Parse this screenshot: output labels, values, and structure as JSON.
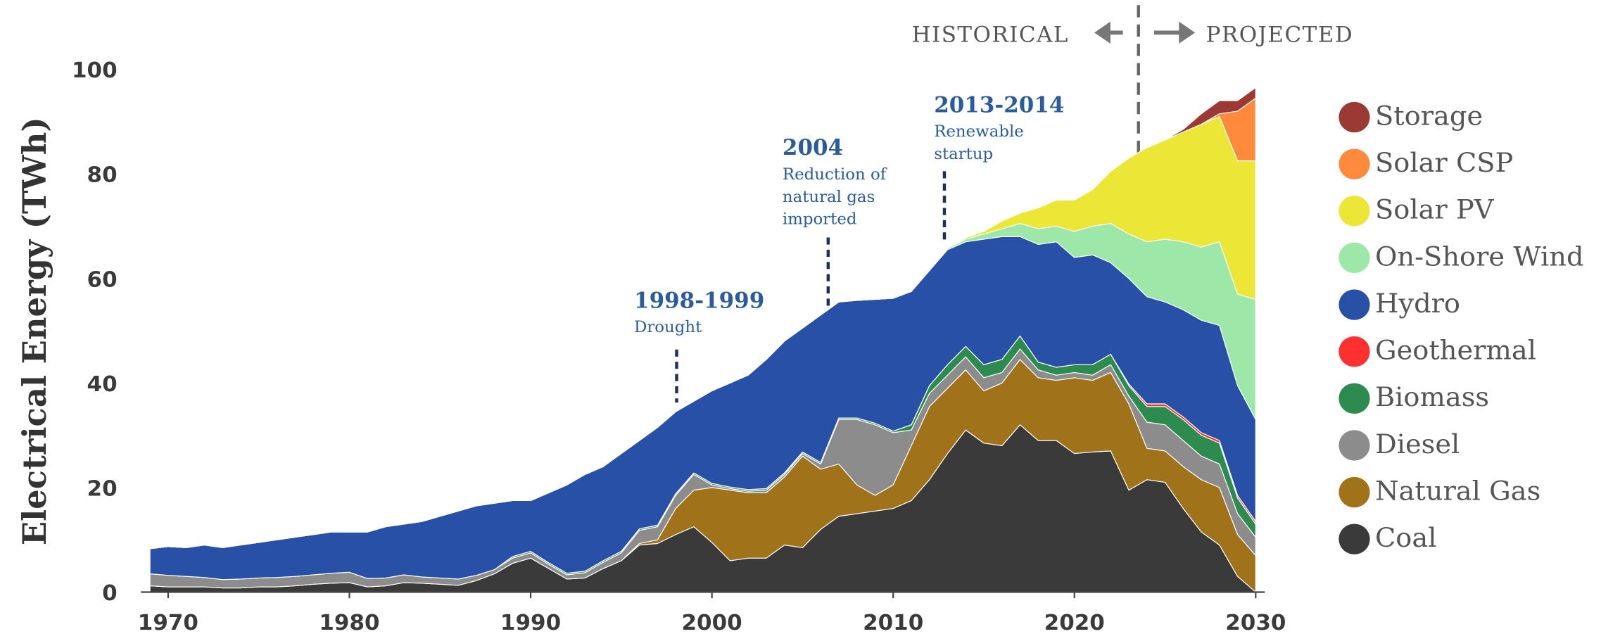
{
  "chart_data": {
    "type": "stacked_area",
    "ylabel": "Electrical Energy (TWh)",
    "divider": {
      "left": "HISTORICAL",
      "right": "PROJECTED"
    },
    "annotations": [
      {
        "title": "1998-1999",
        "lines": [
          "Drought"
        ]
      },
      {
        "title": "2004",
        "lines": [
          "Reduction of",
          "natural gas",
          "imported"
        ]
      },
      {
        "title": "2013-2014",
        "lines": [
          "Renewable",
          "startup"
        ]
      }
    ],
    "xlim": [
      1968.5,
      2030.5
    ],
    "xticks": [
      1970,
      1980,
      1990,
      2000,
      2010,
      2020,
      2030
    ],
    "ylim": [
      0,
      100
    ],
    "yticks": [
      0,
      20,
      40,
      60,
      80,
      100
    ],
    "x": [
      1969,
      1970,
      1971,
      1972,
      1973,
      1974,
      1975,
      1976,
      1977,
      1978,
      1979,
      1980,
      1981,
      1982,
      1983,
      1984,
      1985,
      1986,
      1987,
      1988,
      1989,
      1990,
      1991,
      1992,
      1993,
      1994,
      1995,
      1996,
      1997,
      1998,
      1999,
      2000,
      2001,
      2002,
      2003,
      2004,
      2005,
      2006,
      2007,
      2008,
      2009,
      2010,
      2011,
      2012,
      2013,
      2014,
      2015,
      2016,
      2017,
      2018,
      2019,
      2020,
      2021,
      2022,
      2023,
      2024,
      2025,
      2026,
      2027,
      2028,
      2029,
      2030
    ],
    "series": [
      {
        "name": "Coal",
        "color": "#3a3a3a",
        "values": [
          1.2,
          1,
          1,
          1,
          0.8,
          0.8,
          1,
          1,
          1.2,
          1.5,
          1.7,
          1.8,
          1,
          1.2,
          1.8,
          1.7,
          1.5,
          1.3,
          2.2,
          3.5,
          5.5,
          6.5,
          4.5,
          2.5,
          2.7,
          4.5,
          6,
          9,
          9.3,
          11,
          12.5,
          9.5,
          6,
          6.5,
          6.5,
          9,
          8.5,
          12,
          14.5,
          15,
          15.5,
          16,
          17.5,
          21.5,
          26.5,
          31,
          28.5,
          28,
          32,
          29,
          29,
          26.5,
          26.8,
          27,
          19.5,
          21.5,
          21,
          16,
          11.5,
          9,
          3,
          0
        ]
      },
      {
        "name": "Natural Gas",
        "color": "#a0721a",
        "values": [
          0,
          0,
          0,
          0,
          0,
          0,
          0,
          0,
          0,
          0,
          0,
          0,
          0,
          0,
          0,
          0,
          0,
          0,
          0,
          0,
          0,
          0,
          0,
          0,
          0,
          0,
          0,
          0.3,
          0.7,
          5,
          7,
          10.5,
          13.5,
          12.5,
          12.5,
          13,
          17.5,
          11.5,
          10,
          5.5,
          3,
          4.5,
          10.5,
          14,
          12.5,
          11.5,
          10,
          12,
          12.5,
          12,
          11.5,
          14.5,
          13.7,
          15,
          16.5,
          6,
          6,
          8,
          10,
          11,
          8,
          7
        ]
      },
      {
        "name": "Diesel",
        "color": "#8c8c8c",
        "values": [
          2.3,
          2.2,
          2,
          1.8,
          1.6,
          1.7,
          1.7,
          1.8,
          1.8,
          1.8,
          1.9,
          2,
          1.6,
          1.5,
          1.5,
          1.2,
          1.2,
          1.2,
          1,
          0.8,
          1,
          1,
          0.8,
          0.8,
          1,
          1.2,
          1.5,
          2.5,
          2.5,
          2.5,
          3,
          0.5,
          0.3,
          0.3,
          0.5,
          0.5,
          0.5,
          1,
          8.5,
          12.5,
          13.5,
          10,
          3,
          2.5,
          2.5,
          2.5,
          2.5,
          2,
          2,
          1.5,
          1,
          1,
          1,
          1.5,
          1.5,
          5,
          5,
          5,
          4.5,
          4.5,
          4,
          3.5
        ]
      },
      {
        "name": "Biomass",
        "color": "#2e8b4f",
        "values": [
          0,
          0,
          0,
          0,
          0,
          0,
          0,
          0,
          0,
          0,
          0,
          0,
          0,
          0,
          0,
          0,
          0,
          0,
          0,
          0,
          0.3,
          0.3,
          0.3,
          0.3,
          0.3,
          0.3,
          0.3,
          0.3,
          0.3,
          0.3,
          0.3,
          0.3,
          0.3,
          0.3,
          0.3,
          0.3,
          0.3,
          0.3,
          0.3,
          0.3,
          0.3,
          0.3,
          1,
          1.5,
          2,
          2,
          2.5,
          2.5,
          2.5,
          1.5,
          1.5,
          1.5,
          2,
          2,
          2,
          3,
          3.5,
          4,
          4,
          4,
          3,
          2.5
        ]
      },
      {
        "name": "Geothermal",
        "color": "#ff3030",
        "values": [
          0,
          0,
          0,
          0,
          0,
          0,
          0,
          0,
          0,
          0,
          0,
          0,
          0,
          0,
          0,
          0,
          0,
          0,
          0,
          0,
          0,
          0,
          0,
          0,
          0,
          0,
          0,
          0,
          0,
          0,
          0,
          0,
          0,
          0,
          0,
          0,
          0,
          0,
          0,
          0,
          0,
          0,
          0,
          0,
          0,
          0,
          0,
          0,
          0,
          0,
          0,
          0,
          0,
          0,
          0.3,
          0.5,
          0.5,
          0.5,
          0.5,
          0.5,
          0.5,
          0.5
        ]
      },
      {
        "name": "Hydro",
        "color": "#2750a6",
        "values": [
          4.8,
          5.5,
          5.5,
          6.2,
          6.1,
          6.5,
          6.8,
          7.2,
          7.5,
          7.7,
          7.9,
          7.7,
          8.9,
          9.8,
          9.7,
          10.6,
          11.8,
          13,
          13.3,
          12.7,
          10.7,
          9.7,
          13.4,
          16.9,
          18.5,
          18,
          18.7,
          16.9,
          18.7,
          15.7,
          13.7,
          17.7,
          19.9,
          21.9,
          24.7,
          25.2,
          23.7,
          28.2,
          22.2,
          22.5,
          23.7,
          25.4,
          25.5,
          22,
          22,
          20,
          24,
          23.5,
          19,
          22.5,
          24,
          20.5,
          21,
          17.5,
          20.2,
          20.5,
          19.5,
          20.5,
          21.5,
          22,
          21,
          19.5
        ]
      },
      {
        "name": "On-Shore Wind",
        "color": "#9de8a8",
        "values": [
          0,
          0,
          0,
          0,
          0,
          0,
          0,
          0,
          0,
          0,
          0,
          0,
          0,
          0,
          0,
          0,
          0,
          0,
          0,
          0,
          0,
          0,
          0,
          0,
          0,
          0,
          0,
          0,
          0,
          0,
          0,
          0,
          0,
          0,
          0,
          0,
          0,
          0,
          0,
          0,
          0,
          0,
          0,
          0,
          0.3,
          0.5,
          1,
          1.5,
          2.5,
          3,
          3,
          5,
          5.5,
          7.5,
          8.5,
          10.5,
          12,
          13,
          14,
          16,
          17.5,
          23
        ]
      },
      {
        "name": "Solar PV",
        "color": "#ece637",
        "values": [
          0,
          0,
          0,
          0,
          0,
          0,
          0,
          0,
          0,
          0,
          0,
          0,
          0,
          0,
          0,
          0,
          0,
          0,
          0,
          0,
          0,
          0,
          0,
          0,
          0,
          0,
          0,
          0,
          0,
          0,
          0,
          0,
          0,
          0,
          0,
          0,
          0,
          0,
          0,
          0,
          0,
          0,
          0,
          0,
          0,
          0.3,
          0.5,
          1.5,
          2,
          4,
          5,
          6,
          7,
          10,
          14.5,
          18,
          19,
          21,
          23.5,
          24,
          25.5,
          26.5
        ]
      },
      {
        "name": "Solar CSP",
        "color": "#ff8a3d",
        "values": [
          0,
          0,
          0,
          0,
          0,
          0,
          0,
          0,
          0,
          0,
          0,
          0,
          0,
          0,
          0,
          0,
          0,
          0,
          0,
          0,
          0,
          0,
          0,
          0,
          0,
          0,
          0,
          0,
          0,
          0,
          0,
          0,
          0,
          0,
          0,
          0,
          0,
          0,
          0,
          0,
          0,
          0,
          0,
          0,
          0,
          0,
          0,
          0,
          0,
          0,
          0,
          0,
          0,
          0,
          0,
          0,
          0,
          0,
          0,
          0.5,
          9.5,
          12
        ]
      },
      {
        "name": "Storage",
        "color": "#9b3a34",
        "values": [
          0,
          0,
          0,
          0,
          0,
          0,
          0,
          0,
          0,
          0,
          0,
          0,
          0,
          0,
          0,
          0,
          0,
          0,
          0,
          0,
          0,
          0,
          0,
          0,
          0,
          0,
          0,
          0,
          0,
          0,
          0,
          0,
          0,
          0,
          0,
          0,
          0,
          0,
          0,
          0,
          0,
          0,
          0,
          0,
          0,
          0,
          0,
          0,
          0,
          0,
          0,
          0,
          0,
          0,
          0,
          0,
          0,
          0.5,
          2,
          2.5,
          2,
          2
        ]
      }
    ]
  }
}
